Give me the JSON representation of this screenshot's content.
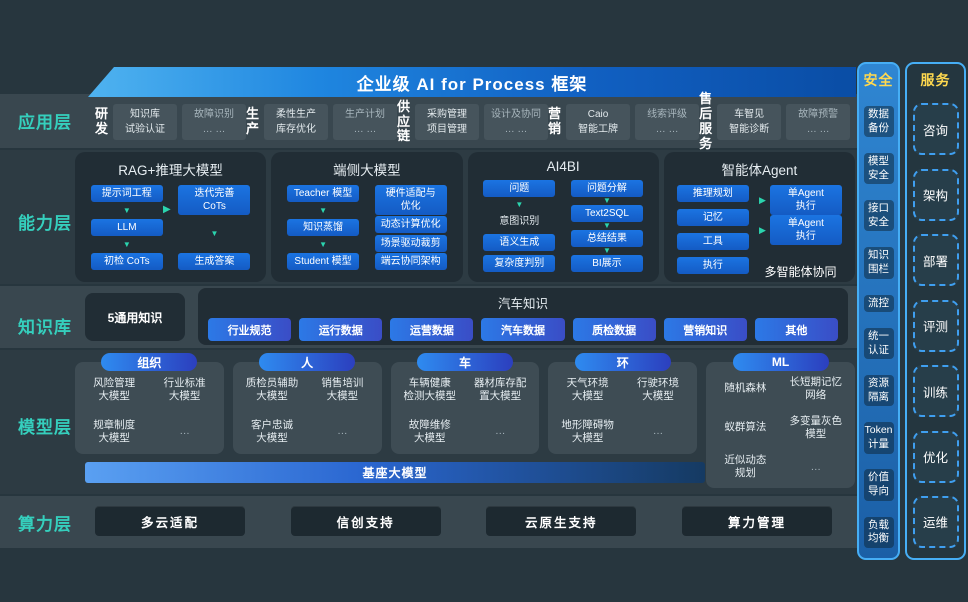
{
  "banner": {
    "title": "企业级 AI for Process 框架"
  },
  "layer_labels": [
    "应用层",
    "能力层",
    "知识库",
    "模型层",
    "算力层"
  ],
  "app_layer": {
    "groups": [
      {
        "name": "研发",
        "cards": [
          "知识库\n试验认证",
          "故障识别\n… …"
        ]
      },
      {
        "name": "生产",
        "cards": [
          "柔性生产\n库存优化",
          "生产计划\n… …"
        ]
      },
      {
        "name": "供应链",
        "cards": [
          "采购管理\n项目管理",
          "设计及协同\n… …"
        ]
      },
      {
        "name": "营销",
        "cards": [
          "Caio\n智能工牌",
          "线索评级\n… …"
        ]
      },
      {
        "name": "售后服务",
        "cards": [
          "车智见\n智能诊断",
          "故障预警\n… …"
        ]
      }
    ]
  },
  "capability_layer": {
    "boxes": [
      {
        "title": "RAG+推理大模型",
        "left": [
          {
            "t": "提示词工程"
          },
          {
            "t": "LLM"
          },
          {
            "t": "初检 CoTs"
          }
        ],
        "left_arrows": "all",
        "right": [
          {
            "t": "迭代完善\nCoTs"
          },
          {
            "t": "生成答案"
          }
        ],
        "right_arrows": "all",
        "connector": true
      },
      {
        "title": "端侧大模型",
        "left": [
          {
            "t": "Teacher 模型"
          },
          {
            "t": "知识蒸馏"
          },
          {
            "t": "Student 模型"
          }
        ],
        "left_arrows": "all",
        "right": [
          {
            "t": "硬件适配与\n优化"
          },
          {
            "t": "动态计算优化"
          },
          {
            "t": "场景驱动裁剪"
          },
          {
            "t": "端云协同架构"
          }
        ],
        "right_arrows": "none"
      },
      {
        "title": "AI4BI",
        "left": [
          {
            "t": "问题"
          },
          {
            "t": "意图识别",
            "plain": true
          },
          {
            "t": "语义生成"
          },
          {
            "t": "复杂度判别"
          }
        ],
        "left_arrows": "first",
        "right": [
          {
            "t": "问题分解"
          },
          {
            "t": "Text2SQL"
          },
          {
            "t": "总结结果"
          },
          {
            "t": "BI展示"
          }
        ],
        "right_arrows": "all"
      },
      {
        "title": "智能体Agent",
        "left": [
          {
            "t": "推理规划"
          },
          {
            "t": "记忆"
          },
          {
            "t": "工具"
          },
          {
            "t": "执行"
          }
        ],
        "left_arrows": "none",
        "right": [
          {
            "t": "单Agent\n执行"
          },
          {
            "t": "单Agent\n执行"
          }
        ],
        "right_arrows": "side",
        "caption": "多智能体协同"
      }
    ]
  },
  "knowledge_layer": {
    "general": "5通用知识",
    "auto_title": "汽车知识",
    "pills": [
      "行业规范",
      "运行数据",
      "运营数据",
      "汽车数据",
      "质检数据",
      "营销知识",
      "其他"
    ]
  },
  "model_layer": {
    "groups": [
      {
        "pill": "组织",
        "models": [
          "风险管理\n大模型",
          "行业标准\n大模型",
          "规章制度\n大模型",
          "…"
        ]
      },
      {
        "pill": "人",
        "models": [
          "质检员辅助\n大模型",
          "销售培训\n大模型",
          "客户忠诚\n大模型",
          "…"
        ]
      },
      {
        "pill": "车",
        "models": [
          "车辆健康\n检测大模型",
          "器材库存配\n置大模型",
          "故障维修\n大模型",
          "…"
        ]
      },
      {
        "pill": "环",
        "models": [
          "天气环境\n大模型",
          "行驶环境\n大模型",
          "地形障碍物\n大模型",
          "…"
        ]
      },
      {
        "pill": "ML",
        "models": [
          "随机森林",
          "长短期记忆\n网络",
          "蚁群算法",
          "多变量灰色\n模型",
          "近似动态\n规划",
          "…"
        ],
        "tall": true
      }
    ],
    "base_bar": "基座大模型"
  },
  "power_layer": {
    "boxes": [
      "多云适配",
      "信创支持",
      "云原生支持",
      "算力管理"
    ]
  },
  "security_column": {
    "title": "安全",
    "items": [
      "数据备份",
      "模型安全",
      "接口安全",
      "知识围栏",
      "流控",
      "统一认证",
      "资源隔离",
      "Token计量",
      "价值导向",
      "负载均衡"
    ]
  },
  "service_column": {
    "title": "服务",
    "items": [
      "咨询",
      "架构",
      "部署",
      "评测",
      "训练",
      "优化",
      "运维"
    ]
  },
  "colors": {
    "background": "#27363e",
    "band_light": "#39474f",
    "band_dark": "#2d3b43",
    "box_dark": "#212d35",
    "item_blue": "#1866d2",
    "teal_accent": "#2bd4ae",
    "label_teal": "#35cfbd",
    "header_yellow": "#ffd94f",
    "frame_blue": "#46aef5",
    "banner_gradient_start": "#4fb3f0",
    "banner_gradient_end": "#0a4da5"
  }
}
